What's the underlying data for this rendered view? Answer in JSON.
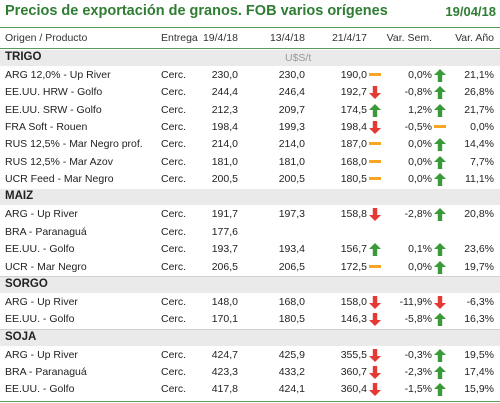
{
  "title": "Precios de exportación de granos. FOB varios orígenes",
  "date": "19/04/18",
  "headers": {
    "product": "Origen / Producto",
    "entrega": "Entrega",
    "d1": "19/4/18",
    "d2": "13/4/18",
    "d3": "21/4/17",
    "sem": "Var. Sem.",
    "anio": "Var. Año"
  },
  "colors": {
    "accent": "#2e7d32",
    "up": "#3a9a3a",
    "down": "#e53935",
    "flat": "#f5a623",
    "section_bg": "#eaeaea"
  },
  "sections": [
    {
      "name": "TRIGO",
      "unit": "U$S/t",
      "rows": [
        {
          "product": "ARG 12,0% - Up River",
          "entrega": "Cerc.",
          "v1": "230,0",
          "v2": "230,0",
          "v3": "190,0",
          "i3": "flat",
          "sem": "0,0%",
          "i4": "up",
          "anio": "21,1%"
        },
        {
          "product": "EE.UU. HRW - Golfo",
          "entrega": "Cerc.",
          "v1": "244,4",
          "v2": "246,4",
          "v3": "192,7",
          "i3": "down",
          "sem": "-0,8%",
          "i4": "up",
          "anio": "26,8%"
        },
        {
          "product": "EE.UU. SRW - Golfo",
          "entrega": "Cerc.",
          "v1": "212,3",
          "v2": "209,7",
          "v3": "174,5",
          "i3": "up",
          "sem": "1,2%",
          "i4": "up",
          "anio": "21,7%"
        },
        {
          "product": "FRA Soft - Rouen",
          "entrega": "Cerc.",
          "v1": "198,4",
          "v2": "199,3",
          "v3": "198,4",
          "i3": "down",
          "sem": "-0,5%",
          "i4": "flat",
          "anio": "0,0%"
        },
        {
          "product": "RUS 12,5% - Mar Negro prof.",
          "entrega": "Cerc.",
          "v1": "214,0",
          "v2": "214,0",
          "v3": "187,0",
          "i3": "flat",
          "sem": "0,0%",
          "i4": "up",
          "anio": "14,4%"
        },
        {
          "product": "RUS 12,5% - Mar Azov",
          "entrega": "Cerc.",
          "v1": "181,0",
          "v2": "181,0",
          "v3": "168,0",
          "i3": "flat",
          "sem": "0,0%",
          "i4": "up",
          "anio": "7,7%"
        },
        {
          "product": "UCR Feed - Mar Negro",
          "entrega": "Cerc.",
          "v1": "200,5",
          "v2": "200,5",
          "v3": "180,5",
          "i3": "flat",
          "sem": "0,0%",
          "i4": "up",
          "anio": "11,1%"
        }
      ]
    },
    {
      "name": "MAIZ",
      "unit": "",
      "rows": [
        {
          "product": "ARG - Up River",
          "entrega": "Cerc.",
          "v1": "191,7",
          "v2": "197,3",
          "v3": "158,8",
          "i3": "down",
          "sem": "-2,8%",
          "i4": "up",
          "anio": "20,8%"
        },
        {
          "product": "BRA - Paranaguá",
          "entrega": "Cerc.",
          "v1": "177,6",
          "v2": "",
          "v3": "",
          "i3": "",
          "sem": "",
          "i4": "",
          "anio": ""
        },
        {
          "product": "EE.UU. - Golfo",
          "entrega": "Cerc.",
          "v1": "193,7",
          "v2": "193,4",
          "v3": "156,7",
          "i3": "up",
          "sem": "0,1%",
          "i4": "up",
          "anio": "23,6%"
        },
        {
          "product": "UCR - Mar Negro",
          "entrega": "Cerc.",
          "v1": "206,5",
          "v2": "206,5",
          "v3": "172,5",
          "i3": "flat",
          "sem": "0,0%",
          "i4": "up",
          "anio": "19,7%"
        }
      ]
    },
    {
      "name": "SORGO",
      "unit": "",
      "rows": [
        {
          "product": "ARG - Up River",
          "entrega": "Cerc.",
          "v1": "148,0",
          "v2": "168,0",
          "v3": "158,0",
          "i3": "down",
          "sem": "-11,9%",
          "i4": "down",
          "anio": "-6,3%"
        },
        {
          "product": "EE.UU. - Golfo",
          "entrega": "Cerc.",
          "v1": "170,1",
          "v2": "180,5",
          "v3": "146,3",
          "i3": "down",
          "sem": "-5,8%",
          "i4": "up",
          "anio": "16,3%"
        }
      ]
    },
    {
      "name": "SOJA",
      "unit": "",
      "rows": [
        {
          "product": "ARG - Up River",
          "entrega": "Cerc.",
          "v1": "424,7",
          "v2": "425,9",
          "v3": "355,5",
          "i3": "down",
          "sem": "-0,3%",
          "i4": "up",
          "anio": "19,5%"
        },
        {
          "product": "BRA - Paranaguá",
          "entrega": "Cerc.",
          "v1": "423,3",
          "v2": "433,2",
          "v3": "360,7",
          "i3": "down",
          "sem": "-2,3%",
          "i4": "up",
          "anio": "17,4%"
        },
        {
          "product": "EE.UU. - Golfo",
          "entrega": "Cerc.",
          "v1": "417,8",
          "v2": "424,1",
          "v3": "360,4",
          "i3": "down",
          "sem": "-1,5%",
          "i4": "up",
          "anio": "15,9%"
        }
      ]
    }
  ]
}
